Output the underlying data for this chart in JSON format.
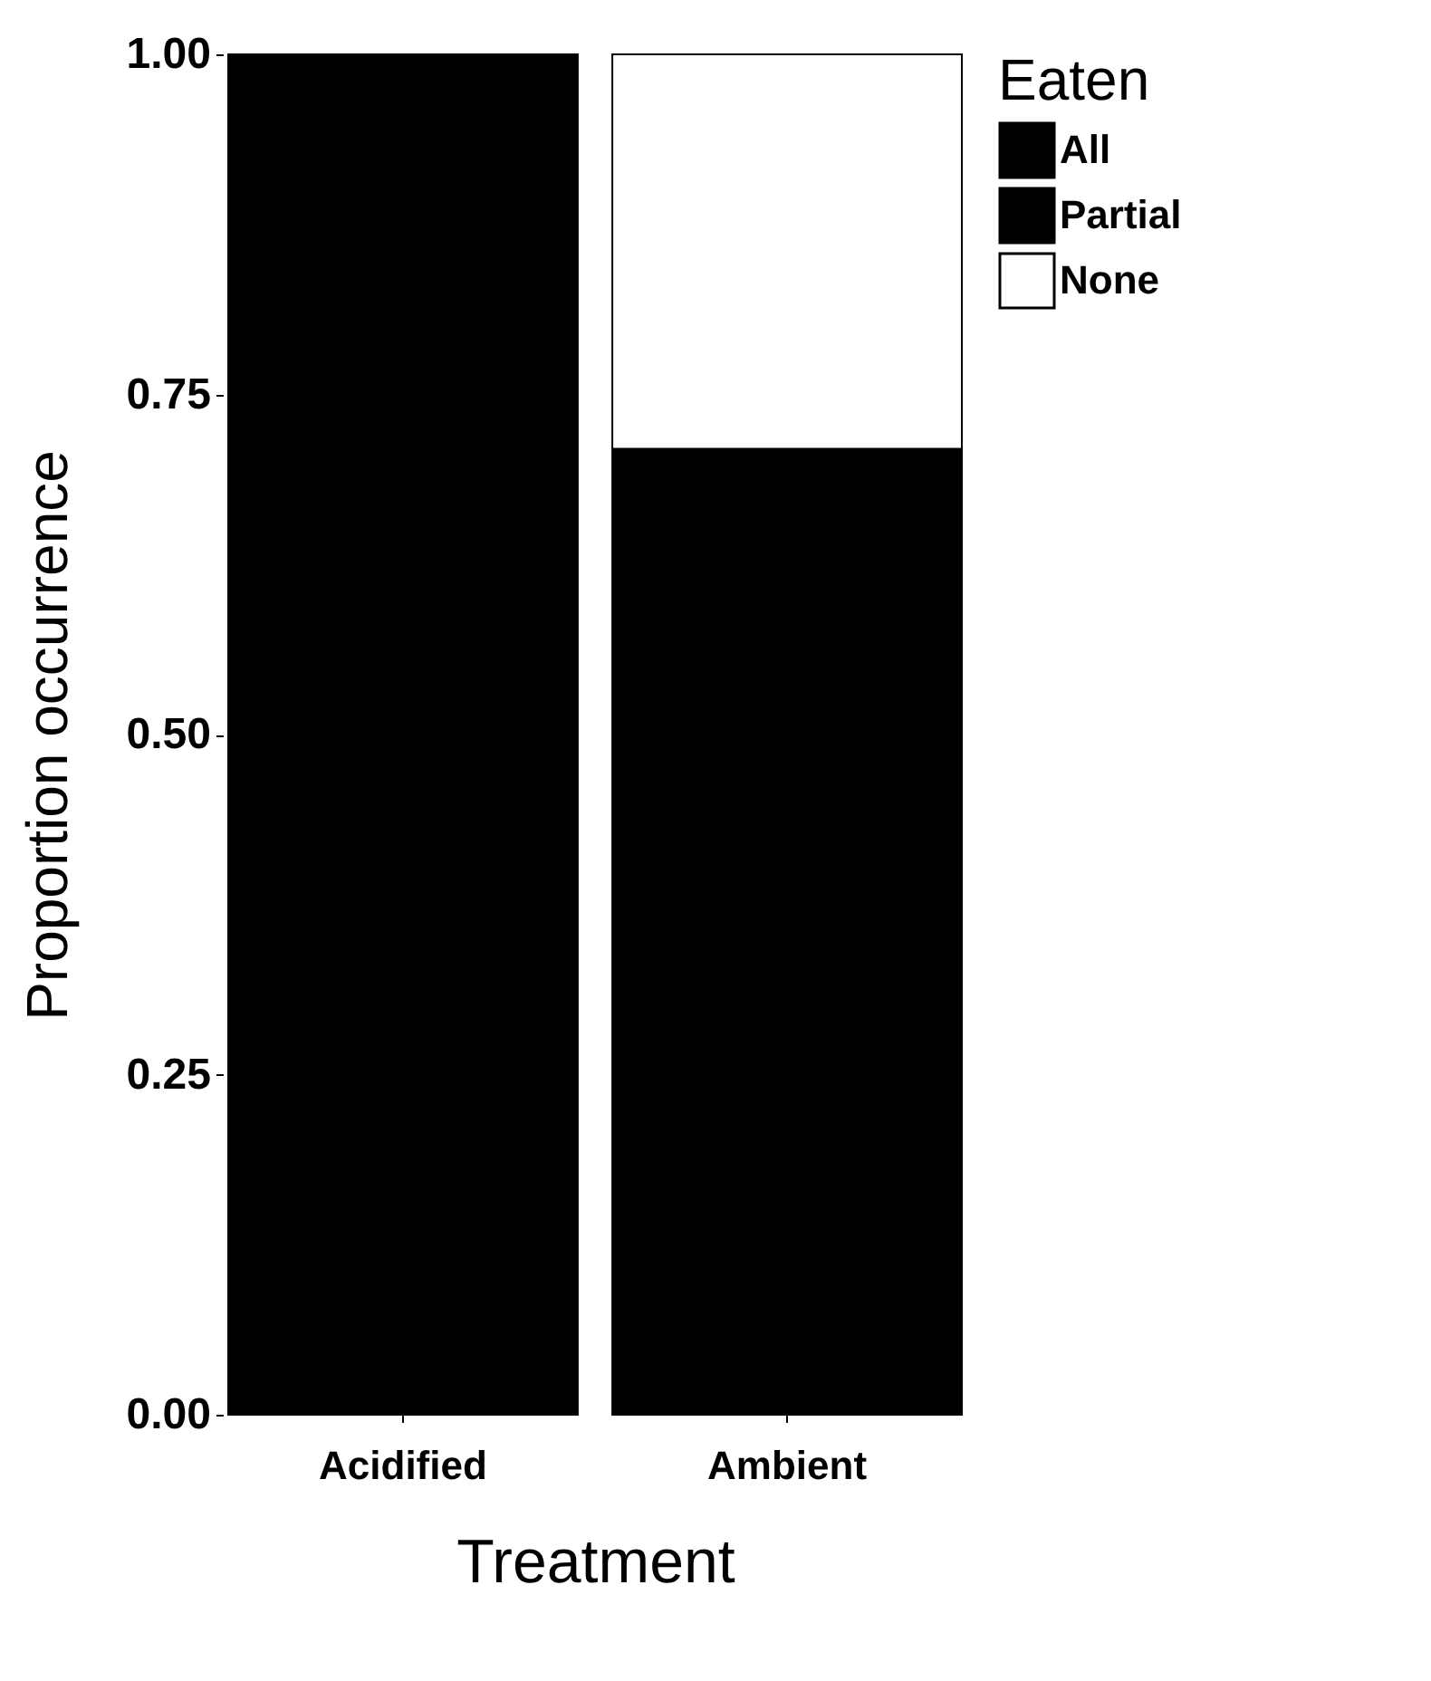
{
  "chart_data": {
    "type": "bar",
    "stacked": true,
    "xlabel": "Treatment",
    "ylabel": "Proportion occurrence",
    "legend_title": "Eaten",
    "legend": "right",
    "grid": false,
    "categories": [
      "Acidified",
      "Ambient"
    ],
    "series": [
      {
        "name": "All",
        "color": "#000000",
        "values": [
          1.0,
          0.71
        ]
      },
      {
        "name": "Partial",
        "color": "#000000",
        "values": [
          null,
          null
        ]
      },
      {
        "name": "None",
        "color": "#ffffff",
        "values": [
          null,
          0.29
        ]
      }
    ],
    "ylim": [
      0,
      1
    ],
    "yticks": [
      {
        "value": 0,
        "label": "0.00"
      },
      0.25,
      {
        "value": 0.5,
        "label": "0.50"
      },
      0.75,
      {
        "value": 1,
        "label": "1.00"
      }
    ]
  }
}
